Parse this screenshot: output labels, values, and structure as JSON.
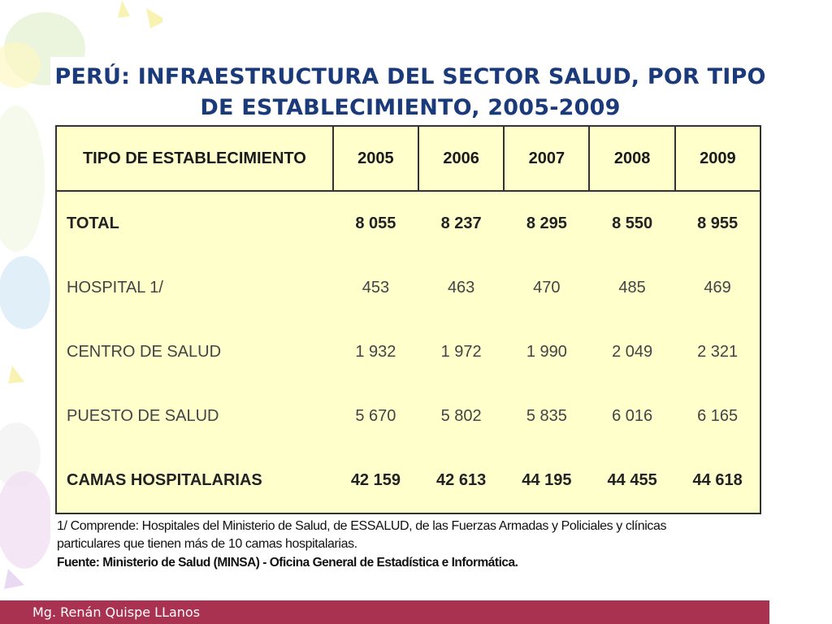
{
  "title_line1": "PERÚ: INFRAESTRUCTURA DEL SECTOR SALUD, POR TIPO",
  "title_line2": "DE ESTABLECIMIENTO, 2005-2009",
  "table": {
    "headers": [
      "TIPO DE ESTABLECIMIENTO",
      "2005",
      "2006",
      "2007",
      "2008",
      "2009"
    ],
    "rows": [
      {
        "label": "TOTAL",
        "values": [
          "8 055",
          "8 237",
          "8 295",
          "8 550",
          "8 955"
        ]
      },
      {
        "label": "HOSPITAL 1/",
        "values": [
          "453",
          "463",
          "470",
          "485",
          "469"
        ]
      },
      {
        "label": "CENTRO DE SALUD",
        "values": [
          "1 932",
          "1 972",
          "1 990",
          "2 049",
          "2 321"
        ]
      },
      {
        "label": "PUESTO DE SALUD",
        "values": [
          "5 670",
          "5 802",
          "5 835",
          "6 016",
          "6 165"
        ]
      },
      {
        "label": "CAMAS HOSPITALARIAS",
        "values": [
          "42 159",
          "42 613",
          "44 195",
          "44 455",
          "44 618"
        ]
      }
    ]
  },
  "footnote_line1": "1/ Comprende: Hospitales del Ministerio de Salud, de ESSALUD, de las Fuerzas Armadas y Policiales y clínicas",
  "footnote_line2": "particulares que tienen más de 10 camas hospitalarias.",
  "source": "Fuente: Ministerio de Salud (MINSA) - Oficina General de Estadística e Informática.",
  "footer_author": "Mg. Renán Quispe LLanos",
  "colors": {
    "title": "#1a3a7a",
    "table_bg": "#ffffcc",
    "footer_bar": "#a8324f"
  }
}
